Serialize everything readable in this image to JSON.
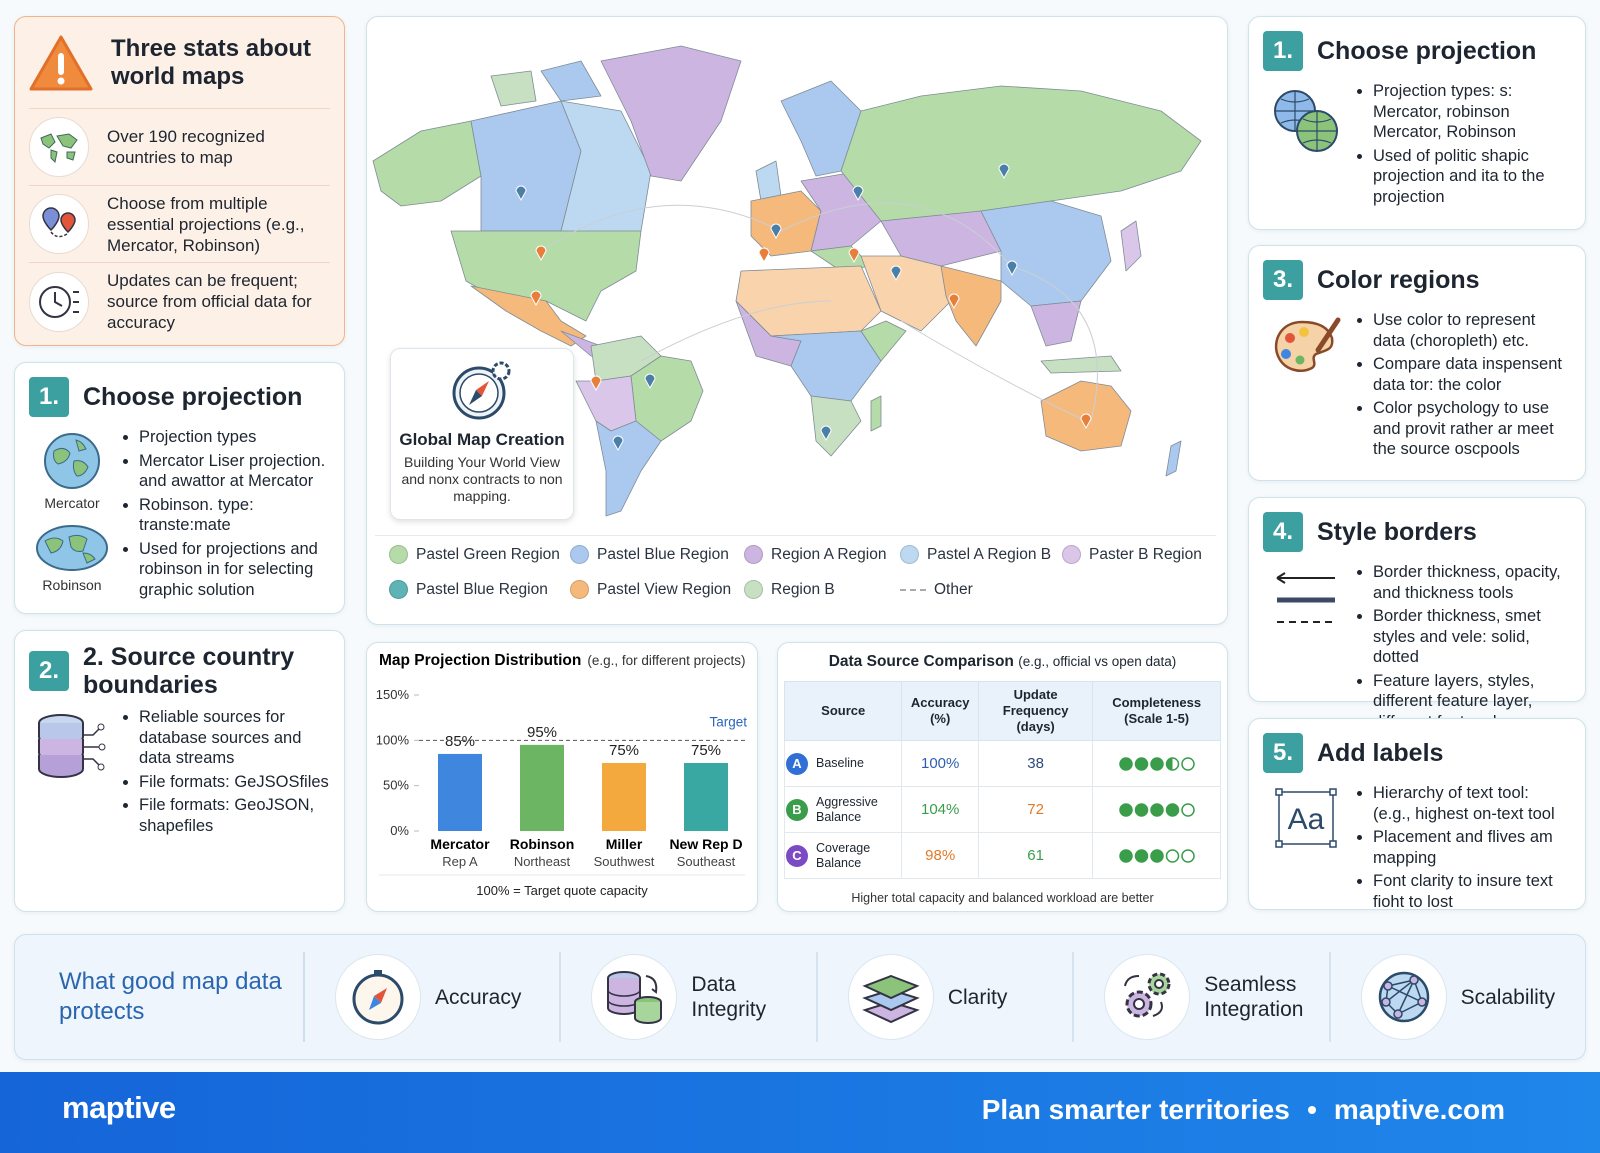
{
  "stats": {
    "title": "Three stats about world maps",
    "items": [
      "Over 190 recognized countries to map",
      "Choose from multiple essential projections (e.g., Mercator, Robinson)",
      "Updates can be frequent; source from official data for accuracy"
    ]
  },
  "left_steps": [
    {
      "number": "1.",
      "title": "Choose projection",
      "bullets": [
        "Projection types",
        "Mercator Liser projection. and awattor at Mercator",
        "Robinson. type: transte:mate",
        "Used for projections and robinson in for selecting graphic solution"
      ],
      "icon_labels": [
        "Mercator",
        "Robinson"
      ]
    },
    {
      "number": "2.",
      "title": "2. Source country boundaries",
      "bullets": [
        "Reliable sources for database sources and data streams",
        "File formats: GeJSOSfiles",
        "File formats: GeoJSON, shapefiles"
      ]
    }
  ],
  "map": {
    "card_title": "Global Map Creation",
    "card_text": "Building Your World View and nonx contracts to non mapping.",
    "legend": [
      {
        "name": "Pastel Green Region",
        "color": "#b4dba8"
      },
      {
        "name": "Pastel Blue Region",
        "color": "#abc9ee"
      },
      {
        "name": "Region A Region",
        "color": "#cdb5e1"
      },
      {
        "name": "Pastel A Region B",
        "color": "#bcd9f1"
      },
      {
        "name": "Paster B Region",
        "color": "#dac6e8"
      },
      {
        "name": "Pastel Blue Region",
        "color": "#5eb3b4"
      },
      {
        "name": "Pastel View Region",
        "color": "#f6b97c"
      },
      {
        "name": "Region B",
        "color": "#c6e0c1"
      },
      {
        "name": "Other",
        "color": "#aaaaaa",
        "dashed": true
      }
    ]
  },
  "chart_data": {
    "type": "bar",
    "title": "Map Projection Distribution",
    "subtitle": "(e.g., for different projects)",
    "categories": [
      "Mercator",
      "Robinson",
      "Miller",
      "New Rep D"
    ],
    "category_sublabels": [
      "Rep A",
      "Northeast",
      "Southwest",
      "Southeast"
    ],
    "values": [
      85,
      95,
      75,
      75
    ],
    "value_labels": [
      "85%",
      "95%",
      "75%",
      "75%"
    ],
    "colors": [
      "#3f86de",
      "#6cb563",
      "#f3a93e",
      "#3aa8a2"
    ],
    "ylim": [
      0,
      150
    ],
    "yticks": [
      {
        "value": 0,
        "label": "0%"
      },
      {
        "value": 50,
        "label": "50%"
      },
      {
        "value": 100,
        "label": "100%"
      },
      {
        "value": 150,
        "label": "150%"
      }
    ],
    "grid": false,
    "target": 100,
    "target_label": "Target",
    "footnote": "100% = Target quote capacity"
  },
  "table": {
    "title": "Data Source Comparison",
    "subtitle": "(e.g., official vs open data)",
    "columns": [
      "Source",
      "Accuracy (%)",
      "Update Frequency (days)",
      "Completeness (Scale 1-5)"
    ],
    "dots": 5,
    "rows": [
      {
        "badge": "A",
        "badge_color": "#2f6fd6",
        "name": "Baseline",
        "accuracy": "100%",
        "accuracy_color": "#2f5fb0",
        "frequency": "38",
        "frequency_color": "#2c4a78",
        "completeness": 3.5
      },
      {
        "badge": "B",
        "badge_color": "#3a9d4a",
        "name": "Aggressive Balance",
        "accuracy": "104%",
        "accuracy_color": "#3a9d4a",
        "frequency": "72",
        "frequency_color": "#e07a2a",
        "completeness": 4
      },
      {
        "badge": "C",
        "badge_color": "#7b4bc4",
        "name": "Coverage Balance",
        "accuracy": "98%",
        "accuracy_color": "#e07a2a",
        "frequency": "61",
        "frequency_color": "#3a9d4a",
        "completeness": 3
      }
    ],
    "footnote": "Higher total capacity and balanced workload are better"
  },
  "right_steps": [
    {
      "number": "1.",
      "title": "Choose projection",
      "bullets": [
        "Projection types: s: Mercator, robinson Mercator, Robinson",
        "Used of politic shapic projection and ita to the projection"
      ]
    },
    {
      "number": "3.",
      "title": "Color regions",
      "bullets": [
        "Use color to represent data (choropleth) etc.",
        "Compare data inspensent data tor: the color",
        "Color psychology to use and provit rather ar meet the source oscpools"
      ]
    },
    {
      "number": "4.",
      "title": "Style borders",
      "bullets": [
        "Border thickness, opacity, and thickness tools",
        "Border thickness, smet styles and vele: solid, dotted",
        "Feature layers, styles, different feature layer, different feature layers"
      ]
    },
    {
      "number": "5.",
      "title": "Add labels",
      "bullets": [
        "Hierarchy of text tool: (e.g., highest on-text tool",
        "Placement and flives am mapping",
        "Font clarity to insure text fioht to lost"
      ],
      "icon_text": "Aa"
    }
  ],
  "protects": {
    "title": "What good map data protects",
    "items": [
      "Accuracy",
      "Data Integrity",
      "Clarity",
      "Seamless Integration",
      "Scalability"
    ]
  },
  "footer": {
    "logo": "maptive",
    "tagline": "Plan smarter territories",
    "site": "maptive.com"
  }
}
